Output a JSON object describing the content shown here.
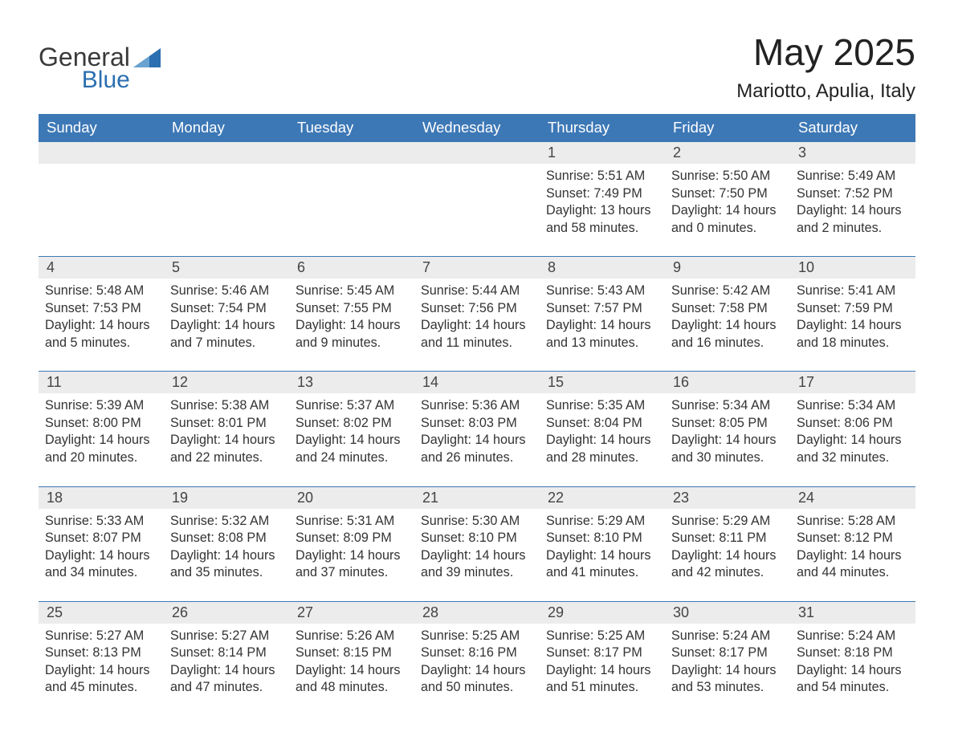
{
  "logo": {
    "word1": "General",
    "word2": "Blue",
    "blue_color": "#2b6fb0"
  },
  "header": {
    "month_title": "May 2025",
    "location": "Mariotto, Apulia, Italy"
  },
  "colors": {
    "header_bg": "#3d78b6",
    "header_text": "#ffffff",
    "daynum_bg": "#ececec",
    "week_border": "#3d78b6",
    "text": "#333333",
    "background": "#ffffff"
  },
  "weekdays": [
    "Sunday",
    "Monday",
    "Tuesday",
    "Wednesday",
    "Thursday",
    "Friday",
    "Saturday"
  ],
  "weeks": [
    [
      null,
      null,
      null,
      null,
      {
        "n": "1",
        "sunrise": "Sunrise: 5:51 AM",
        "sunset": "Sunset: 7:49 PM",
        "d1": "Daylight: 13 hours",
        "d2": "and 58 minutes."
      },
      {
        "n": "2",
        "sunrise": "Sunrise: 5:50 AM",
        "sunset": "Sunset: 7:50 PM",
        "d1": "Daylight: 14 hours",
        "d2": "and 0 minutes."
      },
      {
        "n": "3",
        "sunrise": "Sunrise: 5:49 AM",
        "sunset": "Sunset: 7:52 PM",
        "d1": "Daylight: 14 hours",
        "d2": "and 2 minutes."
      }
    ],
    [
      {
        "n": "4",
        "sunrise": "Sunrise: 5:48 AM",
        "sunset": "Sunset: 7:53 PM",
        "d1": "Daylight: 14 hours",
        "d2": "and 5 minutes."
      },
      {
        "n": "5",
        "sunrise": "Sunrise: 5:46 AM",
        "sunset": "Sunset: 7:54 PM",
        "d1": "Daylight: 14 hours",
        "d2": "and 7 minutes."
      },
      {
        "n": "6",
        "sunrise": "Sunrise: 5:45 AM",
        "sunset": "Sunset: 7:55 PM",
        "d1": "Daylight: 14 hours",
        "d2": "and 9 minutes."
      },
      {
        "n": "7",
        "sunrise": "Sunrise: 5:44 AM",
        "sunset": "Sunset: 7:56 PM",
        "d1": "Daylight: 14 hours",
        "d2": "and 11 minutes."
      },
      {
        "n": "8",
        "sunrise": "Sunrise: 5:43 AM",
        "sunset": "Sunset: 7:57 PM",
        "d1": "Daylight: 14 hours",
        "d2": "and 13 minutes."
      },
      {
        "n": "9",
        "sunrise": "Sunrise: 5:42 AM",
        "sunset": "Sunset: 7:58 PM",
        "d1": "Daylight: 14 hours",
        "d2": "and 16 minutes."
      },
      {
        "n": "10",
        "sunrise": "Sunrise: 5:41 AM",
        "sunset": "Sunset: 7:59 PM",
        "d1": "Daylight: 14 hours",
        "d2": "and 18 minutes."
      }
    ],
    [
      {
        "n": "11",
        "sunrise": "Sunrise: 5:39 AM",
        "sunset": "Sunset: 8:00 PM",
        "d1": "Daylight: 14 hours",
        "d2": "and 20 minutes."
      },
      {
        "n": "12",
        "sunrise": "Sunrise: 5:38 AM",
        "sunset": "Sunset: 8:01 PM",
        "d1": "Daylight: 14 hours",
        "d2": "and 22 minutes."
      },
      {
        "n": "13",
        "sunrise": "Sunrise: 5:37 AM",
        "sunset": "Sunset: 8:02 PM",
        "d1": "Daylight: 14 hours",
        "d2": "and 24 minutes."
      },
      {
        "n": "14",
        "sunrise": "Sunrise: 5:36 AM",
        "sunset": "Sunset: 8:03 PM",
        "d1": "Daylight: 14 hours",
        "d2": "and 26 minutes."
      },
      {
        "n": "15",
        "sunrise": "Sunrise: 5:35 AM",
        "sunset": "Sunset: 8:04 PM",
        "d1": "Daylight: 14 hours",
        "d2": "and 28 minutes."
      },
      {
        "n": "16",
        "sunrise": "Sunrise: 5:34 AM",
        "sunset": "Sunset: 8:05 PM",
        "d1": "Daylight: 14 hours",
        "d2": "and 30 minutes."
      },
      {
        "n": "17",
        "sunrise": "Sunrise: 5:34 AM",
        "sunset": "Sunset: 8:06 PM",
        "d1": "Daylight: 14 hours",
        "d2": "and 32 minutes."
      }
    ],
    [
      {
        "n": "18",
        "sunrise": "Sunrise: 5:33 AM",
        "sunset": "Sunset: 8:07 PM",
        "d1": "Daylight: 14 hours",
        "d2": "and 34 minutes."
      },
      {
        "n": "19",
        "sunrise": "Sunrise: 5:32 AM",
        "sunset": "Sunset: 8:08 PM",
        "d1": "Daylight: 14 hours",
        "d2": "and 35 minutes."
      },
      {
        "n": "20",
        "sunrise": "Sunrise: 5:31 AM",
        "sunset": "Sunset: 8:09 PM",
        "d1": "Daylight: 14 hours",
        "d2": "and 37 minutes."
      },
      {
        "n": "21",
        "sunrise": "Sunrise: 5:30 AM",
        "sunset": "Sunset: 8:10 PM",
        "d1": "Daylight: 14 hours",
        "d2": "and 39 minutes."
      },
      {
        "n": "22",
        "sunrise": "Sunrise: 5:29 AM",
        "sunset": "Sunset: 8:10 PM",
        "d1": "Daylight: 14 hours",
        "d2": "and 41 minutes."
      },
      {
        "n": "23",
        "sunrise": "Sunrise: 5:29 AM",
        "sunset": "Sunset: 8:11 PM",
        "d1": "Daylight: 14 hours",
        "d2": "and 42 minutes."
      },
      {
        "n": "24",
        "sunrise": "Sunrise: 5:28 AM",
        "sunset": "Sunset: 8:12 PM",
        "d1": "Daylight: 14 hours",
        "d2": "and 44 minutes."
      }
    ],
    [
      {
        "n": "25",
        "sunrise": "Sunrise: 5:27 AM",
        "sunset": "Sunset: 8:13 PM",
        "d1": "Daylight: 14 hours",
        "d2": "and 45 minutes."
      },
      {
        "n": "26",
        "sunrise": "Sunrise: 5:27 AM",
        "sunset": "Sunset: 8:14 PM",
        "d1": "Daylight: 14 hours",
        "d2": "and 47 minutes."
      },
      {
        "n": "27",
        "sunrise": "Sunrise: 5:26 AM",
        "sunset": "Sunset: 8:15 PM",
        "d1": "Daylight: 14 hours",
        "d2": "and 48 minutes."
      },
      {
        "n": "28",
        "sunrise": "Sunrise: 5:25 AM",
        "sunset": "Sunset: 8:16 PM",
        "d1": "Daylight: 14 hours",
        "d2": "and 50 minutes."
      },
      {
        "n": "29",
        "sunrise": "Sunrise: 5:25 AM",
        "sunset": "Sunset: 8:17 PM",
        "d1": "Daylight: 14 hours",
        "d2": "and 51 minutes."
      },
      {
        "n": "30",
        "sunrise": "Sunrise: 5:24 AM",
        "sunset": "Sunset: 8:17 PM",
        "d1": "Daylight: 14 hours",
        "d2": "and 53 minutes."
      },
      {
        "n": "31",
        "sunrise": "Sunrise: 5:24 AM",
        "sunset": "Sunset: 8:18 PM",
        "d1": "Daylight: 14 hours",
        "d2": "and 54 minutes."
      }
    ]
  ]
}
